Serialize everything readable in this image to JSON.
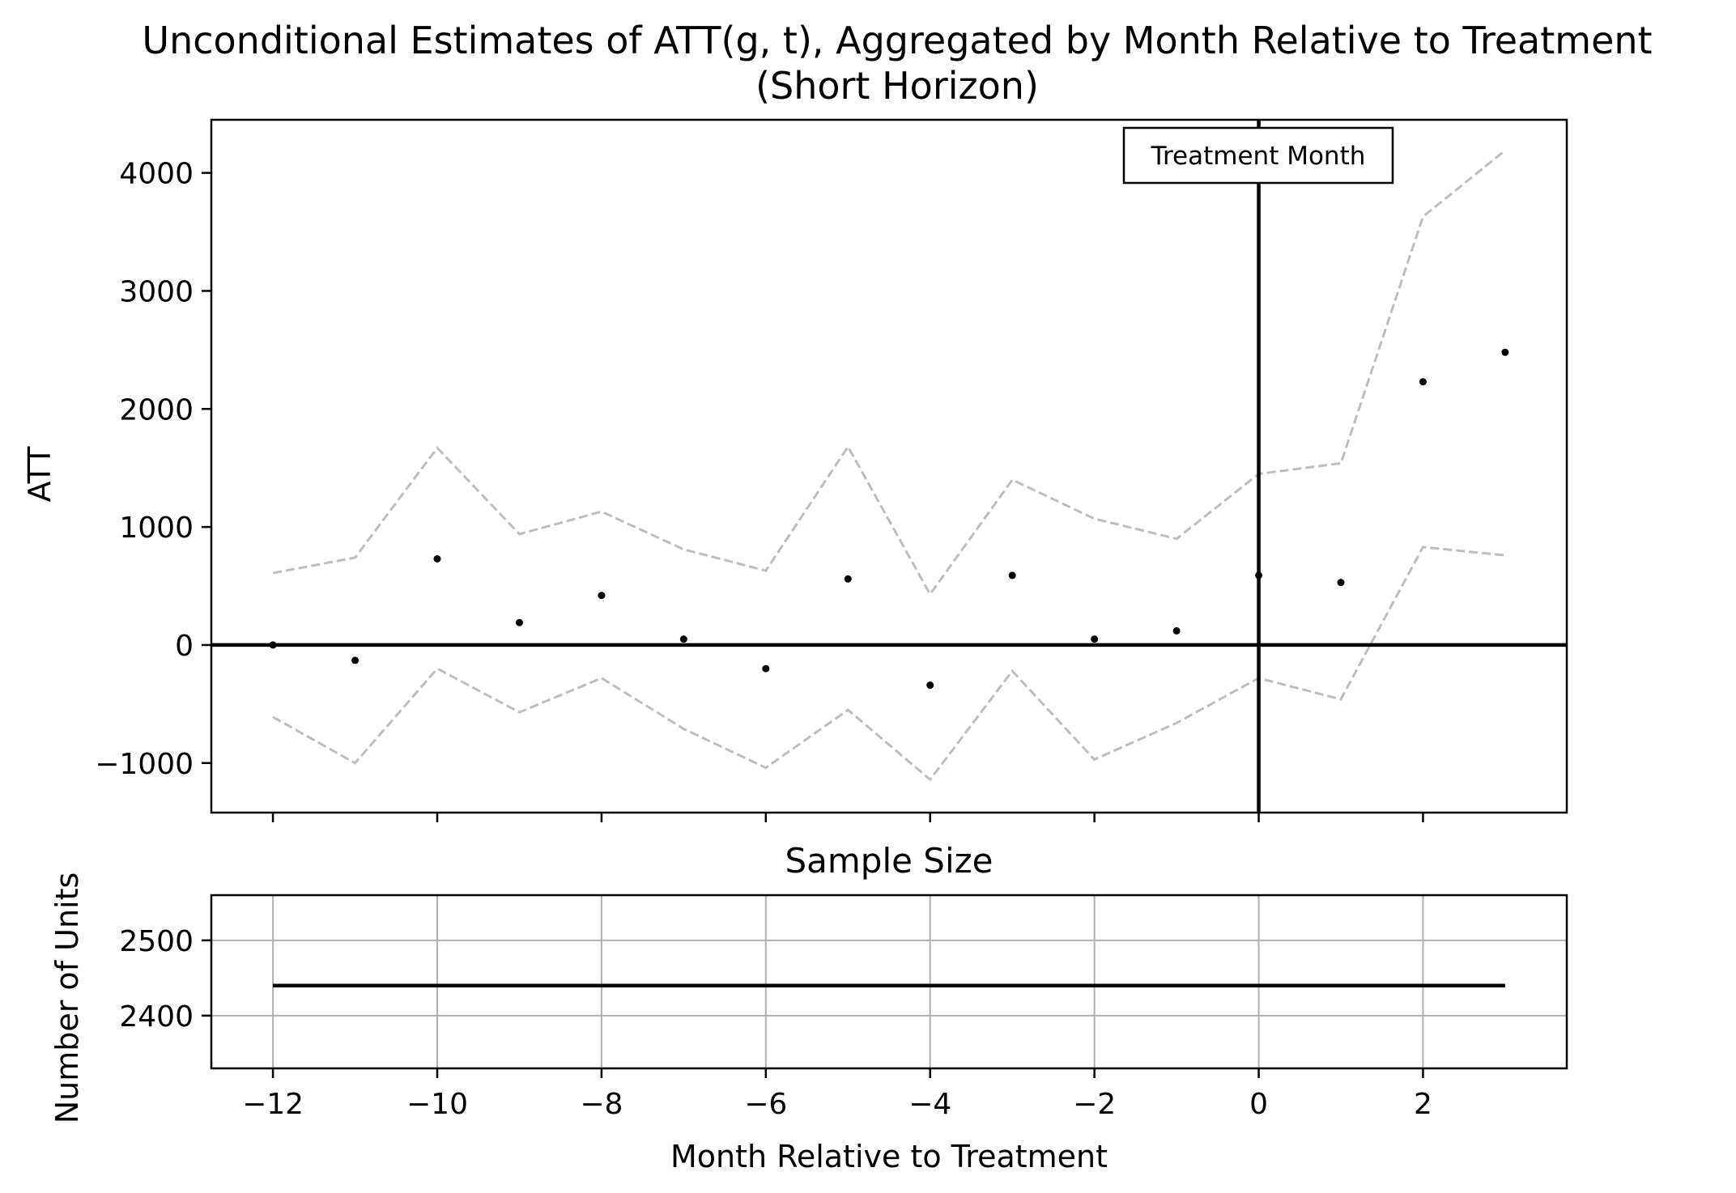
{
  "title_line1": "Unconditional Estimates of ATT(g, t), Aggregated by Month Relative to Treatment",
  "title_line2": "(Short Horizon)",
  "colors": {
    "point": "#000000",
    "ci": "#bdbdbd",
    "reference": "#000000",
    "grid": "#b0b0b0",
    "sample_line": "#000000"
  },
  "chart_data": [
    {
      "type": "scatter",
      "title": "",
      "ylabel": "ATT",
      "xlabel": "",
      "xlim": [
        -12.75,
        3.75
      ],
      "ylim": [
        -1420,
        4450
      ],
      "yticks": [
        -1000,
        0,
        1000,
        2000,
        3000,
        4000
      ],
      "ytick_labels": [
        "−1000",
        "0",
        "1000",
        "2000",
        "3000",
        "4000"
      ],
      "x": [
        -12,
        -11,
        -10,
        -9,
        -8,
        -7,
        -6,
        -5,
        -4,
        -3,
        -2,
        -1,
        0,
        1,
        2,
        3
      ],
      "series": [
        {
          "values": [
            0,
            -130,
            730,
            190,
            420,
            50,
            -200,
            560,
            -340,
            590,
            50,
            120,
            590,
            530,
            2230,
            2480
          ]
        }
      ],
      "ci_upper": [
        610,
        740,
        1670,
        940,
        1130,
        810,
        630,
        1680,
        430,
        1400,
        1070,
        900,
        1450,
        1540,
        3630,
        4190
      ],
      "ci_lower": [
        -610,
        -1000,
        -200,
        -570,
        -280,
        -710,
        -1040,
        -550,
        -1140,
        -220,
        -970,
        -660,
        -280,
        -460,
        830,
        760
      ],
      "hline": 0,
      "vline": 0,
      "annotation": "Treatment Month",
      "grid": false
    },
    {
      "type": "line",
      "title": "Sample Size",
      "xlabel": "Month Relative to Treatment",
      "ylabel": "Number of Units",
      "xlim": [
        -12.75,
        3.75
      ],
      "ylim": [
        2330,
        2560
      ],
      "xticks": [
        -12,
        -10,
        -8,
        -6,
        -4,
        -2,
        0,
        2
      ],
      "xtick_labels": [
        "−12",
        "−10",
        "−8",
        "−6",
        "−4",
        "−2",
        "0",
        "2"
      ],
      "yticks": [
        2400,
        2500
      ],
      "ytick_labels": [
        "2400",
        "2500"
      ],
      "x": [
        -12,
        -11,
        -10,
        -9,
        -8,
        -7,
        -6,
        -5,
        -4,
        -3,
        -2,
        -1,
        0,
        1,
        2,
        3
      ],
      "series": [
        {
          "values": [
            2440,
            2440,
            2440,
            2440,
            2440,
            2440,
            2440,
            2440,
            2440,
            2440,
            2440,
            2440,
            2440,
            2440,
            2440,
            2440
          ]
        }
      ],
      "grid": true
    }
  ]
}
